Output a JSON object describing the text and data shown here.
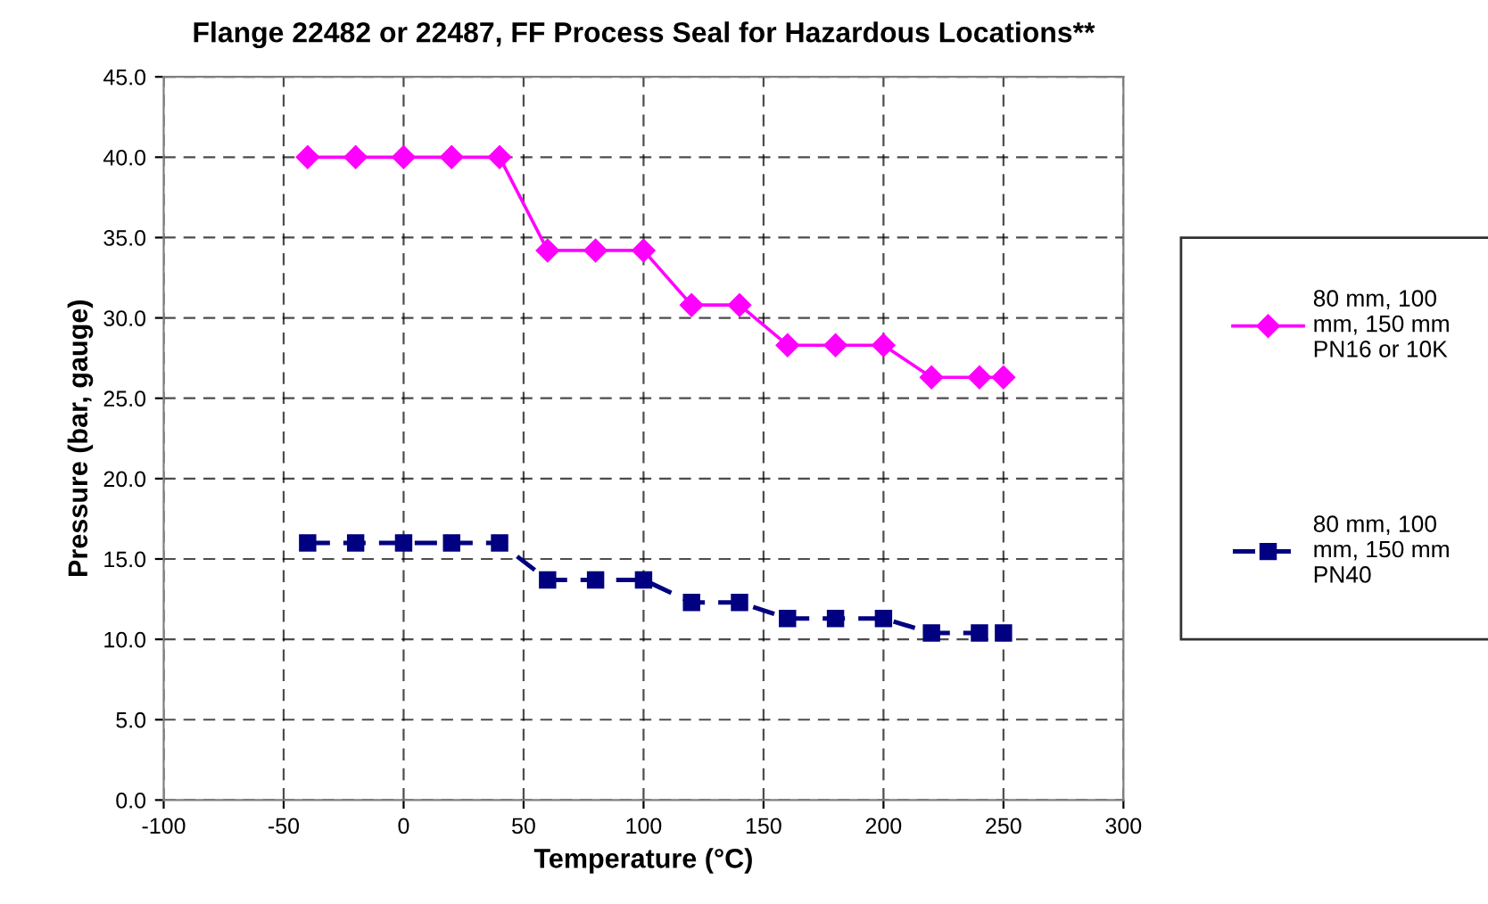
{
  "chart_data": {
    "type": "line",
    "title": "Flange 22482 or 22487, FF Process Seal for Hazardous Locations**",
    "xlabel": "Temperature (°C)",
    "ylabel": "Pressure (bar, gauge)",
    "x": [
      -40,
      -20,
      0,
      20,
      40,
      60,
      80,
      100,
      120,
      140,
      160,
      180,
      200,
      220,
      240,
      250
    ],
    "series": [
      {
        "name": "80 mm, 100\nmm, 150 mm\nPN16 or 10K",
        "color": "#ff00ff",
        "marker": "diamond",
        "line_style": "solid",
        "values": [
          40,
          40,
          40,
          40,
          40,
          34.2,
          34.2,
          34.2,
          30.8,
          30.8,
          28.3,
          28.3,
          28.3,
          26.3,
          26.3,
          26.3
        ]
      },
      {
        "name": "80 mm, 100\nmm, 150 mm\nPN40",
        "color": "#000080",
        "marker": "square",
        "line_style": "dashed",
        "values": [
          16,
          16,
          16,
          16,
          16,
          13.7,
          13.7,
          13.7,
          12.3,
          12.3,
          11.3,
          11.3,
          11.3,
          10.4,
          10.4,
          10.4
        ]
      }
    ],
    "xlim": [
      -100,
      300
    ],
    "xticks": [
      -100,
      -50,
      0,
      50,
      100,
      150,
      200,
      250,
      300
    ],
    "ylim": [
      0,
      45
    ],
    "yticks": [
      {
        "value": 0,
        "label": "0.0"
      },
      {
        "value": 5,
        "label": "5.0"
      },
      {
        "value": 10,
        "label": "10.0"
      },
      {
        "value": 15,
        "label": "15.0"
      },
      {
        "value": 20,
        "label": "20.0"
      },
      {
        "value": 25,
        "label": "25.0"
      },
      {
        "value": 30,
        "label": "30.0"
      },
      {
        "value": 35,
        "label": "35.0"
      },
      {
        "value": 40,
        "label": "40.0"
      },
      {
        "value": 45,
        "label": "45.0"
      }
    ],
    "grid": true,
    "legend": "right"
  }
}
